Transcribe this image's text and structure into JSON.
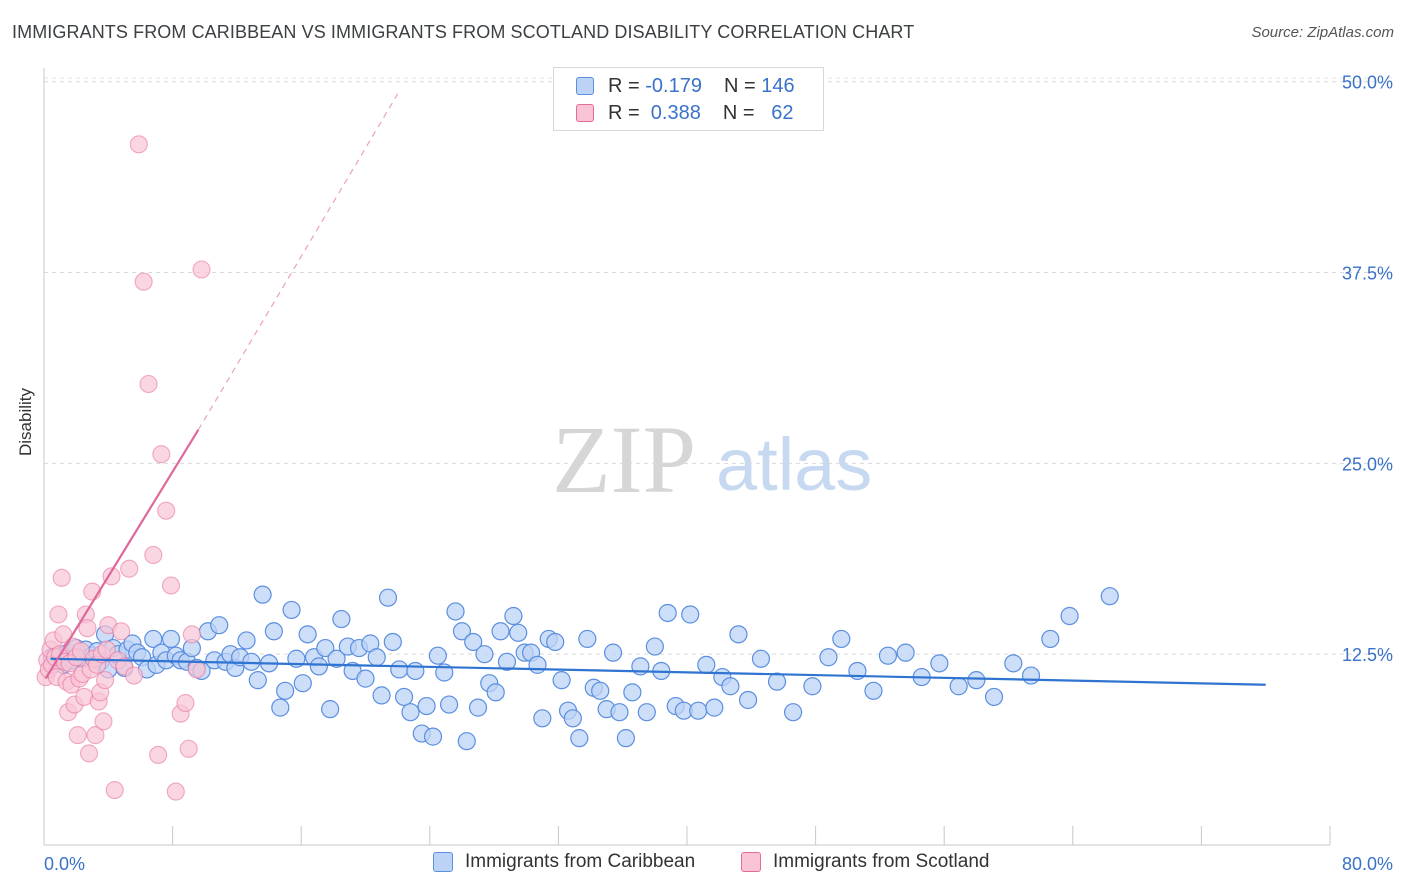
{
  "title": "IMMIGRANTS FROM CARIBBEAN VS IMMIGRANTS FROM SCOTLAND DISABILITY CORRELATION CHART",
  "source": "Source: ZipAtlas.com",
  "watermark": {
    "zip": "ZIP",
    "atlas": "atlas"
  },
  "legend_top": [
    {
      "r_label": "R =",
      "r_value": "-0.179",
      "n_label": "N =",
      "n_value": "146"
    },
    {
      "r_label": "R =",
      "r_value": " 0.388",
      "n_label": "N =",
      "n_value": "62"
    }
  ],
  "colors": {
    "caribbean": "#5b8fe0",
    "caribbean_fill": "#bcd3f5",
    "scotland": "#e86a98",
    "scotland_fill": "#f8c4d6",
    "tick_label": "#3a72c8"
  },
  "chart_data": {
    "type": "scatter",
    "title": "IMMIGRANTS FROM CARIBBEAN VS IMMIGRANTS FROM SCOTLAND DISABILITY CORRELATION CHART",
    "xlabel": "",
    "ylabel": "Disability",
    "xlim": [
      0,
      80
    ],
    "ylim": [
      0,
      52
    ],
    "x_tick_labels": [
      "0.0%",
      "80.0%"
    ],
    "y_ticks": [
      12.5,
      25.0,
      37.5,
      50.0
    ],
    "y_tick_labels": [
      "12.5%",
      "25.0%",
      "37.5%",
      "50.0%"
    ],
    "grid": true,
    "legend_position": "bottom",
    "series": [
      {
        "name": "Immigrants from Caribbean",
        "R": -0.179,
        "N": 146,
        "trend": {
          "x": [
            0.4,
            76
          ],
          "y": [
            12.2,
            10.5
          ]
        },
        "points": [
          [
            0.5,
            12.3
          ],
          [
            0.8,
            12.0
          ],
          [
            1.0,
            12.4
          ],
          [
            1.2,
            11.8
          ],
          [
            1.5,
            12.6
          ],
          [
            1.8,
            12.1
          ],
          [
            2.0,
            12.9
          ],
          [
            2.3,
            12.2
          ],
          [
            2.6,
            12.8
          ],
          [
            3.0,
            12.4
          ],
          [
            3.3,
            12.7
          ],
          [
            3.5,
            12.0
          ],
          [
            3.8,
            13.8
          ],
          [
            4.0,
            11.5
          ],
          [
            4.3,
            12.9
          ],
          [
            4.6,
            12.5
          ],
          [
            5.0,
            11.6
          ],
          [
            5.2,
            12.8
          ],
          [
            5.5,
            13.2
          ],
          [
            5.8,
            12.6
          ],
          [
            6.1,
            12.3
          ],
          [
            6.4,
            11.5
          ],
          [
            6.8,
            13.5
          ],
          [
            7.0,
            11.8
          ],
          [
            7.3,
            12.6
          ],
          [
            7.6,
            12.1
          ],
          [
            7.9,
            13.5
          ],
          [
            8.2,
            12.4
          ],
          [
            8.5,
            12.1
          ],
          [
            8.9,
            12.0
          ],
          [
            9.2,
            12.9
          ],
          [
            9.5,
            11.6
          ],
          [
            9.8,
            11.4
          ],
          [
            10.2,
            14.0
          ],
          [
            10.6,
            12.1
          ],
          [
            10.9,
            14.4
          ],
          [
            11.3,
            12.0
          ],
          [
            11.6,
            12.5
          ],
          [
            11.9,
            11.6
          ],
          [
            12.2,
            12.3
          ],
          [
            12.6,
            13.4
          ],
          [
            12.9,
            12.0
          ],
          [
            13.3,
            10.8
          ],
          [
            13.6,
            16.4
          ],
          [
            14.0,
            11.9
          ],
          [
            14.3,
            14.0
          ],
          [
            14.7,
            9.0
          ],
          [
            15.0,
            10.1
          ],
          [
            15.4,
            15.4
          ],
          [
            15.7,
            12.2
          ],
          [
            16.1,
            10.6
          ],
          [
            16.4,
            13.8
          ],
          [
            16.8,
            12.3
          ],
          [
            17.1,
            11.7
          ],
          [
            17.5,
            12.9
          ],
          [
            17.8,
            8.9
          ],
          [
            18.2,
            12.2
          ],
          [
            18.5,
            14.8
          ],
          [
            18.9,
            13.0
          ],
          [
            19.2,
            11.4
          ],
          [
            19.6,
            12.9
          ],
          [
            20.0,
            10.9
          ],
          [
            20.3,
            13.2
          ],
          [
            20.7,
            12.3
          ],
          [
            21.0,
            9.8
          ],
          [
            21.4,
            16.2
          ],
          [
            21.7,
            13.3
          ],
          [
            22.1,
            11.5
          ],
          [
            22.4,
            9.7
          ],
          [
            22.8,
            8.7
          ],
          [
            23.1,
            11.4
          ],
          [
            23.5,
            7.3
          ],
          [
            23.8,
            9.1
          ],
          [
            24.2,
            7.1
          ],
          [
            24.5,
            12.4
          ],
          [
            24.9,
            11.3
          ],
          [
            25.2,
            9.2
          ],
          [
            25.6,
            15.3
          ],
          [
            26.0,
            14.0
          ],
          [
            26.3,
            6.8
          ],
          [
            26.7,
            13.3
          ],
          [
            27.0,
            9.0
          ],
          [
            27.4,
            12.5
          ],
          [
            27.7,
            10.6
          ],
          [
            28.1,
            10.0
          ],
          [
            28.4,
            14.0
          ],
          [
            28.8,
            12.0
          ],
          [
            29.2,
            15.0
          ],
          [
            29.5,
            13.9
          ],
          [
            29.9,
            12.6
          ],
          [
            30.3,
            12.6
          ],
          [
            30.7,
            11.8
          ],
          [
            31.0,
            8.3
          ],
          [
            31.4,
            13.5
          ],
          [
            31.8,
            13.3
          ],
          [
            32.2,
            10.8
          ],
          [
            32.6,
            8.8
          ],
          [
            32.9,
            8.3
          ],
          [
            33.3,
            7.0
          ],
          [
            33.8,
            13.5
          ],
          [
            34.2,
            10.3
          ],
          [
            34.6,
            10.1
          ],
          [
            35.0,
            8.9
          ],
          [
            35.4,
            12.6
          ],
          [
            35.8,
            8.7
          ],
          [
            36.2,
            7.0
          ],
          [
            36.6,
            10.0
          ],
          [
            37.1,
            11.7
          ],
          [
            37.5,
            8.7
          ],
          [
            38.0,
            13.0
          ],
          [
            38.4,
            11.4
          ],
          [
            38.8,
            15.2
          ],
          [
            39.3,
            9.1
          ],
          [
            39.8,
            8.8
          ],
          [
            40.2,
            15.1
          ],
          [
            40.7,
            8.8
          ],
          [
            41.2,
            11.8
          ],
          [
            41.7,
            9.0
          ],
          [
            42.2,
            11.0
          ],
          [
            42.7,
            10.4
          ],
          [
            43.2,
            13.8
          ],
          [
            43.8,
            9.5
          ],
          [
            44.6,
            12.2
          ],
          [
            45.6,
            10.7
          ],
          [
            46.6,
            8.7
          ],
          [
            47.8,
            10.4
          ],
          [
            48.8,
            12.3
          ],
          [
            49.6,
            13.5
          ],
          [
            50.6,
            11.4
          ],
          [
            51.6,
            10.1
          ],
          [
            52.5,
            12.4
          ],
          [
            53.6,
            12.6
          ],
          [
            54.6,
            11.0
          ],
          [
            55.7,
            11.9
          ],
          [
            56.9,
            10.4
          ],
          [
            58.0,
            10.8
          ],
          [
            59.1,
            9.7
          ],
          [
            60.3,
            11.9
          ],
          [
            61.4,
            11.1
          ],
          [
            62.6,
            13.5
          ],
          [
            63.8,
            15.0
          ],
          [
            66.3,
            16.3
          ]
        ]
      },
      {
        "name": "Immigrants from Scotland",
        "R": 0.388,
        "N": 62,
        "trend": {
          "x": [
            0.1,
            9.6
          ],
          "y": [
            10.9,
            27.2
          ]
        },
        "trend_dashed": {
          "x": [
            9.6,
            22.0
          ],
          "y": [
            27.2,
            49.2
          ]
        },
        "points": [
          [
            0.1,
            11.0
          ],
          [
            0.2,
            12.1
          ],
          [
            0.3,
            11.5
          ],
          [
            0.4,
            12.8
          ],
          [
            0.5,
            11.8
          ],
          [
            0.6,
            13.4
          ],
          [
            0.7,
            12.3
          ],
          [
            0.8,
            11.0
          ],
          [
            0.9,
            15.1
          ],
          [
            1.0,
            12.5
          ],
          [
            1.1,
            17.5
          ],
          [
            1.2,
            13.8
          ],
          [
            1.3,
            12.0
          ],
          [
            1.4,
            10.7
          ],
          [
            1.5,
            8.7
          ],
          [
            1.6,
            11.9
          ],
          [
            1.7,
            10.5
          ],
          [
            1.8,
            13.0
          ],
          [
            1.9,
            9.2
          ],
          [
            2.0,
            12.3
          ],
          [
            2.1,
            7.2
          ],
          [
            2.2,
            10.9
          ],
          [
            2.3,
            12.7
          ],
          [
            2.4,
            11.2
          ],
          [
            2.5,
            9.7
          ],
          [
            2.6,
            15.1
          ],
          [
            2.7,
            14.2
          ],
          [
            2.8,
            6.0
          ],
          [
            2.9,
            11.5
          ],
          [
            3.0,
            16.6
          ],
          [
            3.1,
            12.2
          ],
          [
            3.2,
            7.2
          ],
          [
            3.3,
            11.8
          ],
          [
            3.4,
            9.4
          ],
          [
            3.5,
            10.0
          ],
          [
            3.6,
            12.5
          ],
          [
            3.7,
            8.1
          ],
          [
            3.8,
            10.8
          ],
          [
            3.9,
            12.8
          ],
          [
            4.0,
            14.4
          ],
          [
            4.2,
            17.6
          ],
          [
            4.4,
            3.6
          ],
          [
            4.6,
            12.1
          ],
          [
            4.8,
            14.0
          ],
          [
            5.0,
            11.7
          ],
          [
            5.3,
            18.1
          ],
          [
            5.6,
            11.1
          ],
          [
            5.9,
            45.9
          ],
          [
            6.2,
            36.9
          ],
          [
            6.5,
            30.2
          ],
          [
            6.8,
            19.0
          ],
          [
            7.1,
            5.9
          ],
          [
            7.3,
            25.6
          ],
          [
            7.6,
            21.9
          ],
          [
            7.9,
            17.0
          ],
          [
            8.2,
            3.5
          ],
          [
            8.5,
            8.6
          ],
          [
            8.8,
            9.3
          ],
          [
            9.0,
            6.3
          ],
          [
            9.2,
            13.8
          ],
          [
            9.5,
            11.5
          ],
          [
            9.8,
            37.7
          ]
        ]
      }
    ]
  }
}
